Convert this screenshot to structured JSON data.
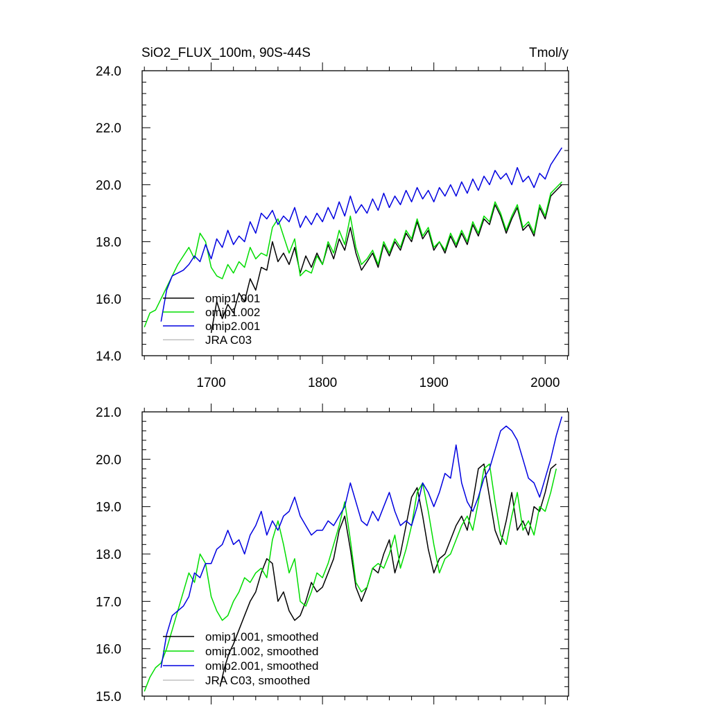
{
  "chart_data": [
    {
      "type": "line",
      "title": "SiO2_FLUX_100m, 90S-44S",
      "units": "Tmol/y",
      "xlabel": "",
      "ylabel": "",
      "xlim": [
        1638,
        2021
      ],
      "ylim": [
        14.0,
        24.0
      ],
      "xticks": [
        1700,
        1800,
        1900,
        2000
      ],
      "xtick_labels": [
        "1700",
        "1800",
        "1900",
        "2000"
      ],
      "yticks": [
        14,
        16,
        18,
        20,
        22,
        24
      ],
      "ytick_labels": [
        "14.0",
        "16.0",
        "18.0",
        "20.0",
        "22.0",
        "24.0"
      ],
      "legend_position": "bottom-left",
      "series": [
        {
          "name": "omip1.001",
          "color": "#000000",
          "x": [
            1700,
            1705,
            1710,
            1715,
            1720,
            1725,
            1730,
            1735,
            1740,
            1745,
            1750,
            1755,
            1760,
            1765,
            1770,
            1775,
            1780,
            1785,
            1790,
            1795,
            1800,
            1805,
            1810,
            1815,
            1820,
            1825,
            1830,
            1835,
            1840,
            1845,
            1850,
            1855,
            1860,
            1865,
            1870,
            1875,
            1880,
            1885,
            1890,
            1895,
            1900,
            1905,
            1910,
            1915,
            1920,
            1925,
            1930,
            1935,
            1940,
            1945,
            1950,
            1955,
            1960,
            1965,
            1970,
            1975,
            1980,
            1985,
            1990,
            1995,
            2000,
            2005,
            2010,
            2015
          ],
          "values": [
            14.8,
            15.9,
            15.3,
            15.8,
            15.5,
            16.2,
            15.9,
            16.7,
            16.3,
            17.1,
            17.0,
            18.0,
            17.3,
            17.6,
            17.2,
            17.8,
            16.9,
            17.5,
            17.1,
            17.6,
            17.2,
            17.9,
            17.4,
            18.1,
            17.7,
            18.5,
            17.6,
            17.0,
            17.3,
            17.6,
            17.1,
            17.9,
            17.5,
            18.0,
            17.7,
            18.3,
            18.0,
            18.7,
            18.1,
            18.4,
            17.7,
            18.0,
            17.6,
            18.2,
            17.8,
            18.3,
            17.9,
            18.6,
            18.2,
            18.8,
            18.6,
            19.3,
            18.9,
            18.3,
            18.8,
            19.2,
            18.4,
            18.6,
            18.2,
            19.2,
            18.8,
            19.6,
            19.8,
            20.0
          ]
        },
        {
          "name": "omip1.002",
          "color": "#00dd00",
          "x": [
            1640,
            1645,
            1650,
            1655,
            1660,
            1665,
            1670,
            1675,
            1680,
            1685,
            1690,
            1695,
            1700,
            1705,
            1710,
            1715,
            1720,
            1725,
            1730,
            1735,
            1740,
            1745,
            1750,
            1755,
            1760,
            1765,
            1770,
            1775,
            1780,
            1785,
            1790,
            1795,
            1800,
            1805,
            1810,
            1815,
            1820,
            1825,
            1830,
            1835,
            1840,
            1845,
            1850,
            1855,
            1860,
            1865,
            1870,
            1875,
            1880,
            1885,
            1890,
            1895,
            1900,
            1905,
            1910,
            1915,
            1920,
            1925,
            1930,
            1935,
            1940,
            1945,
            1950,
            1955,
            1960,
            1965,
            1970,
            1975,
            1980,
            1985,
            1990,
            1995,
            2000,
            2005,
            2010,
            2015
          ],
          "values": [
            15.0,
            15.5,
            15.6,
            16.0,
            16.4,
            16.8,
            17.2,
            17.5,
            17.8,
            17.4,
            18.3,
            18.0,
            17.1,
            16.8,
            16.7,
            17.2,
            16.9,
            17.3,
            17.1,
            17.8,
            17.4,
            17.6,
            17.5,
            18.5,
            18.8,
            18.2,
            17.6,
            18.1,
            16.8,
            17.0,
            16.9,
            17.5,
            17.2,
            18.0,
            17.6,
            18.4,
            17.9,
            18.9,
            17.8,
            17.2,
            17.4,
            17.7,
            17.2,
            18.0,
            17.6,
            18.1,
            17.8,
            18.4,
            18.1,
            18.8,
            18.2,
            18.5,
            17.8,
            18.0,
            17.7,
            18.3,
            17.9,
            18.4,
            18.0,
            18.7,
            18.3,
            18.9,
            18.7,
            19.4,
            19.0,
            18.4,
            18.9,
            19.3,
            18.5,
            18.7,
            18.3,
            19.3,
            18.9,
            19.7,
            19.9,
            20.1
          ]
        },
        {
          "name": "omip2.001",
          "color": "#0000e0",
          "x": [
            1655,
            1660,
            1665,
            1670,
            1675,
            1680,
            1685,
            1690,
            1695,
            1700,
            1705,
            1710,
            1715,
            1720,
            1725,
            1730,
            1735,
            1740,
            1745,
            1750,
            1755,
            1760,
            1765,
            1770,
            1775,
            1780,
            1785,
            1790,
            1795,
            1800,
            1805,
            1810,
            1815,
            1820,
            1825,
            1830,
            1835,
            1840,
            1845,
            1850,
            1855,
            1860,
            1865,
            1870,
            1875,
            1880,
            1885,
            1890,
            1895,
            1900,
            1905,
            1910,
            1915,
            1920,
            1925,
            1930,
            1935,
            1940,
            1945,
            1950,
            1955,
            1960,
            1965,
            1970,
            1975,
            1980,
            1985,
            1990,
            1995,
            2000,
            2005,
            2010,
            2015
          ],
          "values": [
            15.2,
            16.3,
            16.8,
            16.9,
            17.0,
            17.2,
            17.5,
            17.3,
            17.9,
            17.4,
            18.1,
            17.8,
            18.4,
            17.9,
            18.2,
            18.0,
            18.7,
            18.3,
            19.0,
            18.8,
            19.1,
            18.6,
            18.9,
            18.7,
            19.2,
            18.5,
            18.9,
            18.6,
            19.0,
            18.7,
            19.2,
            18.8,
            19.4,
            18.9,
            19.6,
            19.0,
            19.3,
            19.0,
            19.5,
            19.1,
            19.7,
            19.2,
            19.6,
            19.3,
            19.8,
            19.4,
            19.9,
            19.5,
            19.8,
            19.4,
            19.9,
            19.6,
            20.0,
            19.6,
            20.1,
            19.7,
            20.2,
            19.8,
            20.3,
            20.0,
            20.5,
            20.2,
            20.4,
            20.0,
            20.6,
            20.1,
            20.3,
            19.9,
            20.4,
            20.2,
            20.7,
            21.0,
            21.3
          ]
        },
        {
          "name": "JRA C03",
          "color": "#c0c0c0",
          "x": [],
          "values": []
        }
      ]
    },
    {
      "type": "line",
      "title": "",
      "units": "",
      "xlabel": "",
      "ylabel": "",
      "xlim": [
        1638,
        2021
      ],
      "ylim": [
        15.0,
        21.0
      ],
      "xticks": [
        1700,
        1800,
        1900,
        2000
      ],
      "yticks": [
        15,
        16,
        17,
        18,
        19,
        20,
        21
      ],
      "ytick_labels": [
        "15.0",
        "16.0",
        "17.0",
        "18.0",
        "19.0",
        "20.0",
        "21.0"
      ],
      "legend_position": "bottom-left",
      "series": [
        {
          "name": "omip1.001, smoothed",
          "color": "#000000",
          "x": [
            1708,
            1712,
            1716,
            1720,
            1725,
            1730,
            1735,
            1740,
            1745,
            1750,
            1755,
            1760,
            1765,
            1770,
            1775,
            1780,
            1785,
            1790,
            1795,
            1800,
            1805,
            1810,
            1815,
            1820,
            1825,
            1830,
            1835,
            1840,
            1845,
            1850,
            1855,
            1860,
            1865,
            1870,
            1875,
            1880,
            1885,
            1890,
            1895,
            1900,
            1905,
            1910,
            1915,
            1920,
            1925,
            1930,
            1935,
            1940,
            1945,
            1950,
            1955,
            1960,
            1965,
            1970,
            1975,
            1980,
            1985,
            1990,
            1995,
            2000,
            2005,
            2010
          ],
          "values": [
            15.2,
            15.6,
            15.9,
            16.1,
            16.4,
            16.7,
            17.0,
            17.2,
            17.6,
            17.9,
            17.8,
            17.0,
            17.2,
            16.8,
            16.6,
            16.7,
            17.0,
            17.4,
            17.2,
            17.3,
            17.6,
            17.9,
            18.5,
            18.8,
            18.1,
            17.3,
            17.0,
            17.3,
            17.7,
            17.6,
            18.0,
            18.3,
            17.6,
            18.0,
            18.6,
            19.2,
            19.4,
            18.8,
            18.1,
            17.6,
            17.9,
            18.0,
            18.3,
            18.6,
            18.8,
            18.5,
            19.1,
            19.8,
            19.9,
            19.2,
            18.5,
            18.2,
            18.7,
            19.3,
            18.5,
            18.7,
            18.4,
            19.0,
            18.9,
            19.3,
            19.8,
            19.9
          ]
        },
        {
          "name": "omip1.002, smoothed",
          "color": "#00dd00",
          "x": [
            1640,
            1645,
            1650,
            1655,
            1660,
            1665,
            1670,
            1675,
            1680,
            1685,
            1690,
            1695,
            1700,
            1705,
            1710,
            1715,
            1720,
            1725,
            1730,
            1735,
            1740,
            1745,
            1750,
            1755,
            1760,
            1765,
            1770,
            1775,
            1780,
            1785,
            1790,
            1795,
            1800,
            1805,
            1810,
            1815,
            1820,
            1825,
            1830,
            1835,
            1840,
            1845,
            1850,
            1855,
            1860,
            1865,
            1870,
            1875,
            1880,
            1885,
            1890,
            1895,
            1900,
            1905,
            1910,
            1915,
            1920,
            1925,
            1930,
            1935,
            1940,
            1945,
            1950,
            1955,
            1960,
            1965,
            1970,
            1975,
            1980,
            1985,
            1990,
            1995,
            2000,
            2005,
            2010
          ],
          "values": [
            15.1,
            15.4,
            15.6,
            15.7,
            16.0,
            16.4,
            16.8,
            17.2,
            17.6,
            17.4,
            18.0,
            17.8,
            17.1,
            16.8,
            16.6,
            16.7,
            17.0,
            17.2,
            17.5,
            17.4,
            17.6,
            17.7,
            17.5,
            18.3,
            18.7,
            18.2,
            17.6,
            17.9,
            17.0,
            16.9,
            17.2,
            17.6,
            17.5,
            17.8,
            18.2,
            18.6,
            19.1,
            18.3,
            17.4,
            17.2,
            17.3,
            17.7,
            17.8,
            17.7,
            18.0,
            18.4,
            17.7,
            18.1,
            18.6,
            19.3,
            19.5,
            18.9,
            18.2,
            17.6,
            17.9,
            18.0,
            18.3,
            18.6,
            18.8,
            18.5,
            19.1,
            19.8,
            19.9,
            19.1,
            18.4,
            18.2,
            18.8,
            19.3,
            18.5,
            18.7,
            18.4,
            19.0,
            18.9,
            19.3,
            19.8
          ]
        },
        {
          "name": "omip2.001, smoothed",
          "color": "#0000e0",
          "x": [
            1655,
            1660,
            1665,
            1670,
            1675,
            1680,
            1685,
            1690,
            1695,
            1700,
            1705,
            1710,
            1715,
            1720,
            1725,
            1730,
            1735,
            1740,
            1745,
            1750,
            1755,
            1760,
            1765,
            1770,
            1775,
            1780,
            1785,
            1790,
            1795,
            1800,
            1805,
            1810,
            1815,
            1820,
            1825,
            1830,
            1835,
            1840,
            1845,
            1850,
            1855,
            1860,
            1865,
            1870,
            1875,
            1880,
            1885,
            1890,
            1895,
            1900,
            1905,
            1910,
            1915,
            1920,
            1925,
            1930,
            1935,
            1940,
            1945,
            1950,
            1955,
            1960,
            1965,
            1970,
            1975,
            1980,
            1985,
            1990,
            1995,
            2000,
            2005,
            2010,
            2015
          ],
          "values": [
            15.6,
            16.3,
            16.7,
            16.8,
            16.9,
            17.1,
            17.6,
            17.5,
            17.8,
            17.8,
            18.1,
            18.2,
            18.5,
            18.2,
            18.3,
            18.0,
            18.4,
            18.6,
            18.9,
            18.4,
            18.7,
            18.5,
            18.8,
            18.9,
            19.2,
            18.8,
            18.6,
            18.4,
            18.5,
            18.5,
            18.7,
            18.6,
            18.8,
            19.0,
            19.5,
            19.1,
            18.7,
            18.6,
            18.9,
            18.7,
            19.0,
            19.3,
            18.9,
            18.6,
            18.7,
            18.6,
            19.0,
            19.5,
            19.3,
            19.0,
            19.3,
            19.7,
            19.6,
            20.3,
            19.5,
            19.1,
            18.9,
            19.2,
            19.6,
            19.8,
            20.2,
            20.6,
            20.7,
            20.6,
            20.4,
            20.0,
            19.6,
            19.5,
            19.2,
            19.6,
            20.0,
            20.5,
            20.9
          ]
        },
        {
          "name": "JRA C03, smoothed",
          "color": "#c0c0c0",
          "x": [],
          "values": []
        }
      ]
    }
  ]
}
